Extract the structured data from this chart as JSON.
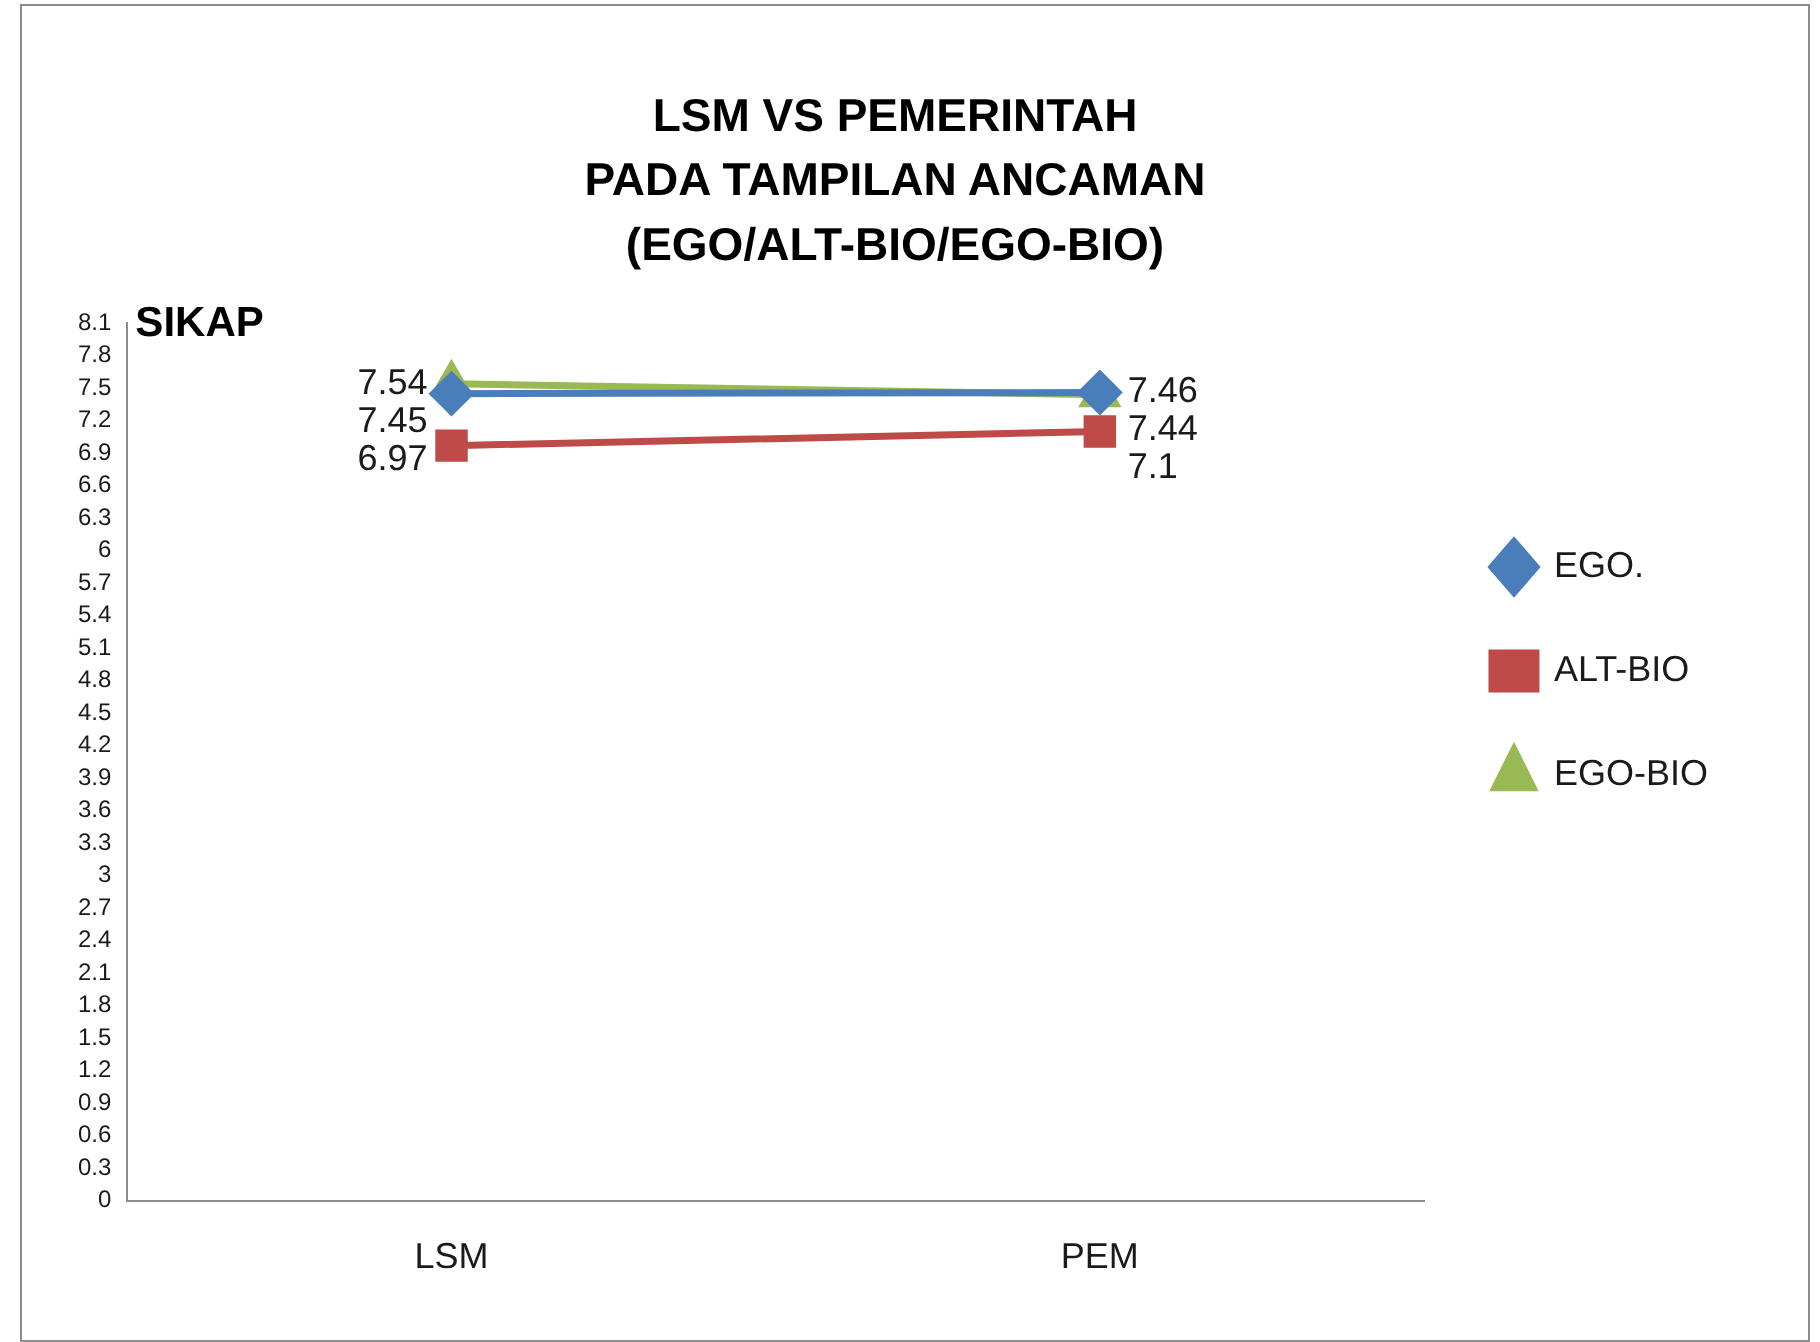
{
  "chart_data": {
    "type": "line",
    "title": "LSM VS PEMERINTAH\nPADA TAMPILAN ANCAMAN\n(EGO/ALT-BIO/EGO-BIO)",
    "ylabel": "SIKAP",
    "categories": [
      "LSM",
      "PEM"
    ],
    "series": [
      {
        "name": "EGO.",
        "color": "#4a7ebb",
        "marker": "diamond",
        "values": [
          7.45,
          7.46
        ]
      },
      {
        "name": "ALT-BIO",
        "color": "#be4b48",
        "marker": "square",
        "values": [
          6.97,
          7.1
        ]
      },
      {
        "name": "EGO-BIO",
        "color": "#98b954",
        "marker": "triangle",
        "values": [
          7.54,
          7.44
        ]
      }
    ],
    "ylim": [
      0,
      8.1
    ],
    "yticks": [
      0,
      0.3,
      0.6,
      0.9,
      1.2,
      1.5,
      1.8,
      2.1,
      2.4,
      2.7,
      3,
      3.3,
      3.6,
      3.9,
      4.2,
      4.5,
      4.8,
      5.1,
      5.4,
      5.7,
      6,
      6.3,
      6.6,
      6.9,
      7.2,
      7.5,
      7.8,
      8.1
    ],
    "grid": false,
    "legend": "right",
    "data_labels": true
  }
}
